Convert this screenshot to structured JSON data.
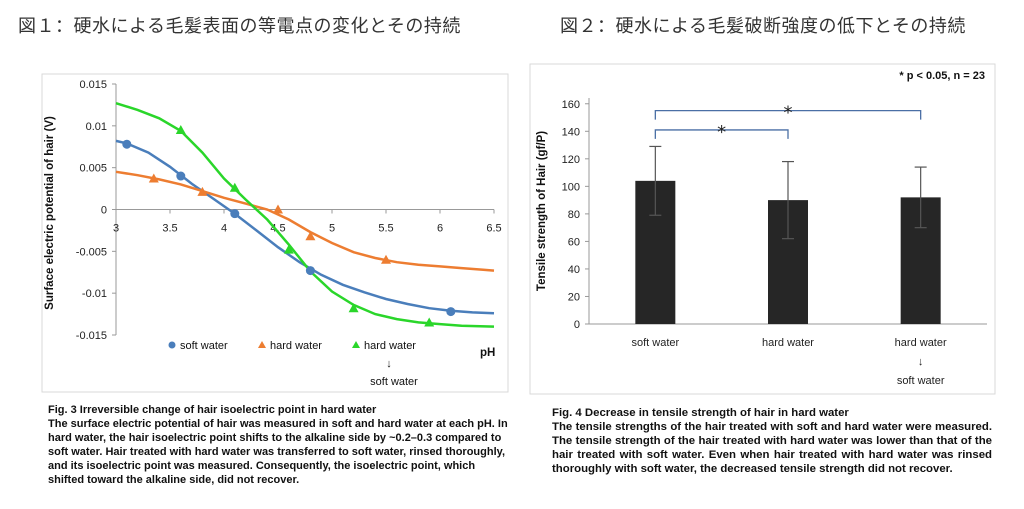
{
  "headings": {
    "fig1": "図１：硬水による毛髪表面の等電点の変化とその持続",
    "fig2": "図２：硬水による毛髪破断強度の低下とその持続"
  },
  "captions": {
    "fig3_title": "Fig. 3 Irreversible change of hair isoelectric point in hard water",
    "fig3_body": "The surface electric potential of hair was measured in soft and hard water at each pH. In hard water, the hair isoelectric point shifts to the alkaline side by ~0.2–0.3 compared to soft water. Hair treated with hard water was transferred to soft water, rinsed thoroughly, and its isoelectric point was measured. Consequently, the isoelectric point, which shifted toward the alkaline side, did not recover.",
    "fig4_title": "Fig. 4 Decrease in tensile strength of hair in hard water",
    "fig4_body": "The tensile strengths of the hair treated with soft and hard water were measured. The tensile strength of the hair treated with hard water was lower than that of the hair treated with soft water. Even when hair treated with hard water was rinsed thoroughly with soft water, the decreased tensile strength did not recover."
  },
  "chart_data": [
    {
      "type": "line",
      "title": "",
      "xlabel": "pH",
      "ylabel": "Surface electric potential of hair (V)",
      "xlim": [
        3,
        6.5
      ],
      "ylim": [
        -0.015,
        0.015
      ],
      "x_ticks": [
        "3",
        "3.5",
        "4",
        "4.5",
        "5",
        "5.5",
        "6",
        "6.5"
      ],
      "y_ticks": [
        "0.015",
        "0.01",
        "0.005",
        "0",
        "-0.005",
        "-0.01",
        "-0.015"
      ],
      "grid": false,
      "legend_position": "bottom",
      "series": [
        {
          "name": "soft water",
          "color": "#4a7ebb",
          "marker": "circle",
          "points": [
            [
              3.1,
              0.0078
            ],
            [
              3.6,
              0.004
            ],
            [
              4.1,
              -0.0005
            ],
            [
              4.8,
              -0.0073
            ],
            [
              6.1,
              -0.0122
            ]
          ],
          "curve": [
            [
              3.0,
              0.0082
            ],
            [
              3.1,
              0.0079
            ],
            [
              3.3,
              0.0068
            ],
            [
              3.5,
              0.0051
            ],
            [
              3.7,
              0.0031
            ],
            [
              3.9,
              0.0013
            ],
            [
              4.1,
              -0.0005
            ],
            [
              4.3,
              -0.0025
            ],
            [
              4.5,
              -0.0045
            ],
            [
              4.7,
              -0.0063
            ],
            [
              4.9,
              -0.0078
            ],
            [
              5.1,
              -0.009
            ],
            [
              5.3,
              -0.0099
            ],
            [
              5.5,
              -0.0107
            ],
            [
              5.7,
              -0.0113
            ],
            [
              5.9,
              -0.0118
            ],
            [
              6.1,
              -0.0121
            ],
            [
              6.3,
              -0.0123
            ],
            [
              6.5,
              -0.0124
            ]
          ]
        },
        {
          "name": "hard water",
          "color": "#ed7d31",
          "marker": "triangle",
          "points": [
            [
              3.35,
              0.0037
            ],
            [
              3.8,
              0.0021
            ],
            [
              4.5,
              0.0
            ],
            [
              4.8,
              -0.0032
            ],
            [
              5.5,
              -0.006
            ]
          ],
          "curve": [
            [
              3.0,
              0.0045
            ],
            [
              3.2,
              0.0041
            ],
            [
              3.4,
              0.0036
            ],
            [
              3.6,
              0.003
            ],
            [
              3.8,
              0.0022
            ],
            [
              4.0,
              0.0014
            ],
            [
              4.2,
              0.0007
            ],
            [
              4.4,
              0.0
            ],
            [
              4.6,
              -0.0012
            ],
            [
              4.8,
              -0.0027
            ],
            [
              5.0,
              -0.004
            ],
            [
              5.2,
              -0.0051
            ],
            [
              5.4,
              -0.0058
            ],
            [
              5.6,
              -0.0063
            ],
            [
              5.8,
              -0.0066
            ],
            [
              6.0,
              -0.0068
            ],
            [
              6.2,
              -0.007
            ],
            [
              6.4,
              -0.0072
            ],
            [
              6.5,
              -0.0073
            ]
          ]
        },
        {
          "name": "hard water\n↓\nsoft water",
          "color": "#2ad62a",
          "marker": "triangle",
          "points": [
            [
              3.6,
              0.0095
            ],
            [
              4.1,
              0.0026
            ],
            [
              4.6,
              -0.0048
            ],
            [
              5.2,
              -0.0118
            ],
            [
              5.9,
              -0.0135
            ]
          ],
          "curve": [
            [
              3.0,
              0.0127
            ],
            [
              3.2,
              0.0119
            ],
            [
              3.4,
              0.0109
            ],
            [
              3.6,
              0.0094
            ],
            [
              3.8,
              0.0068
            ],
            [
              4.0,
              0.0037
            ],
            [
              4.2,
              0.0012
            ],
            [
              4.4,
              -0.0012
            ],
            [
              4.6,
              -0.0042
            ],
            [
              4.8,
              -0.0074
            ],
            [
              5.0,
              -0.0098
            ],
            [
              5.2,
              -0.0114
            ],
            [
              5.4,
              -0.0125
            ],
            [
              5.6,
              -0.0131
            ],
            [
              5.8,
              -0.0135
            ],
            [
              6.0,
              -0.0137
            ],
            [
              6.2,
              -0.0139
            ],
            [
              6.5,
              -0.014
            ]
          ]
        }
      ]
    },
    {
      "type": "bar",
      "title": "",
      "xlabel": "",
      "ylabel": "Tensile strength of Hair (gf/P)",
      "ylim": [
        0,
        170
      ],
      "y_ticks": [
        "0",
        "20",
        "40",
        "60",
        "80",
        "100",
        "120",
        "140",
        "160"
      ],
      "grid": false,
      "categories": [
        "soft water",
        "hard water",
        "hard water\n↓\nsoft water"
      ],
      "values": [
        104,
        90,
        92
      ],
      "errors": [
        25,
        28,
        22
      ],
      "bar_color": "#262626",
      "significance_note": "* p < 0.05, n = 23",
      "significance": [
        {
          "from": 0,
          "to": 1,
          "label": "*"
        },
        {
          "from": 0,
          "to": 2,
          "label": "*"
        }
      ]
    }
  ]
}
